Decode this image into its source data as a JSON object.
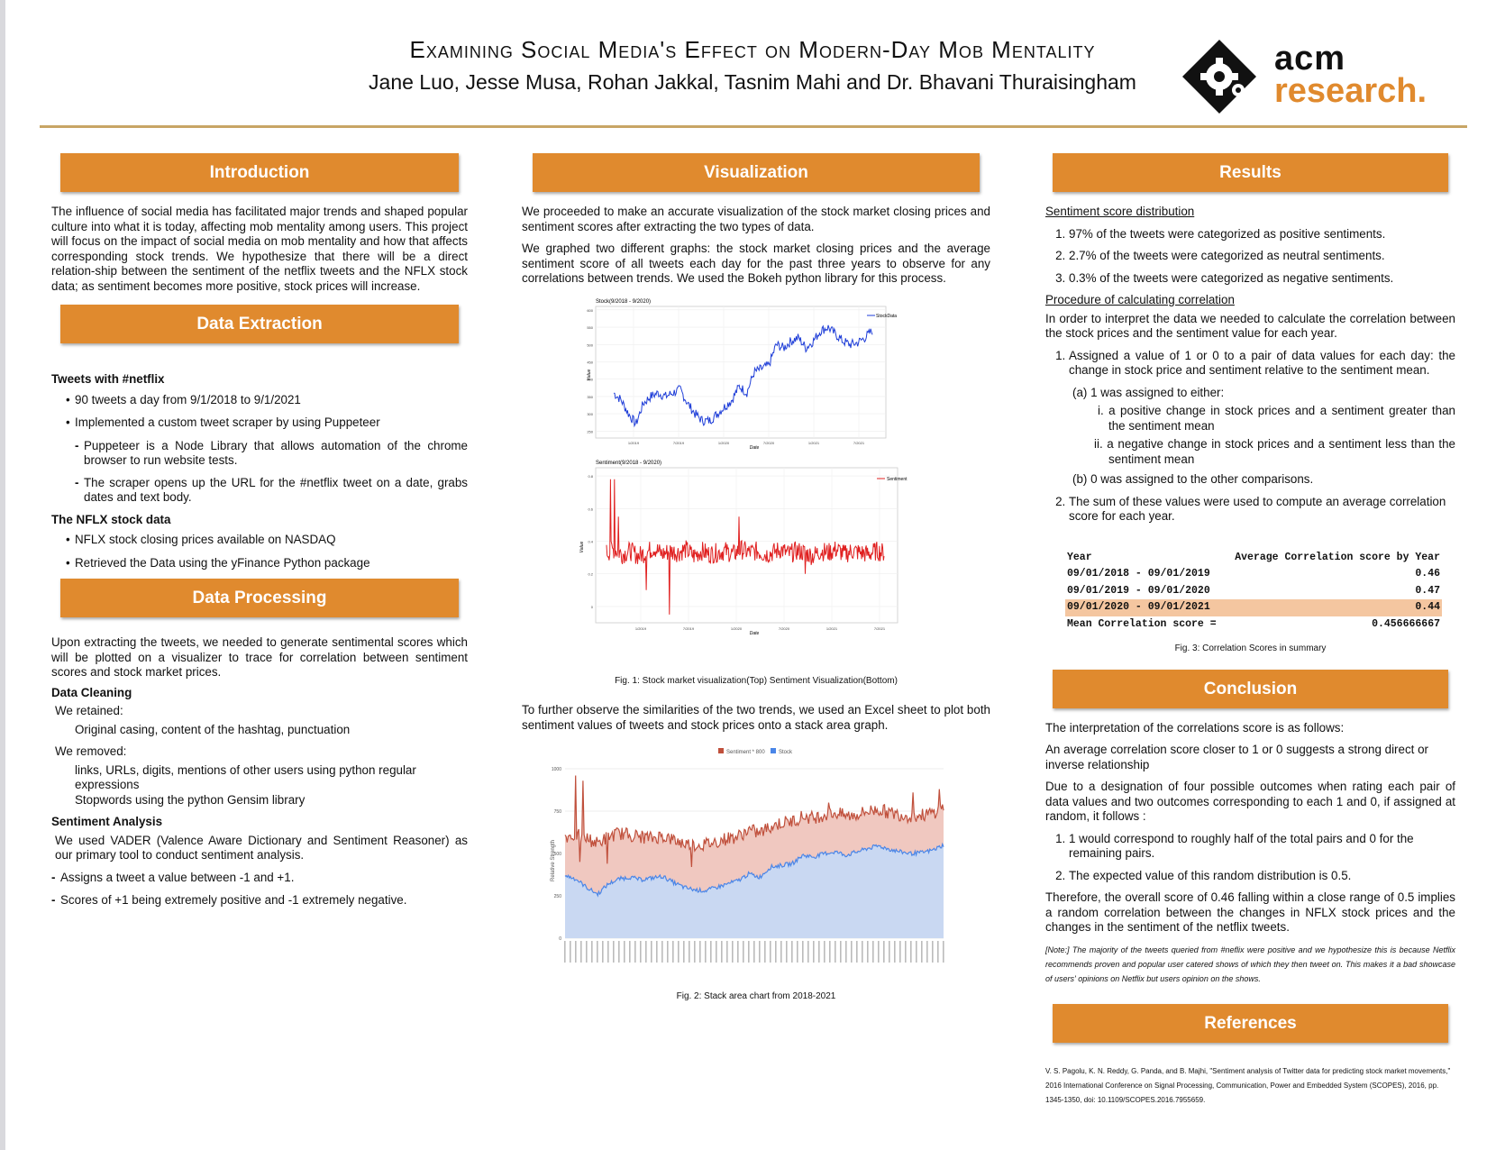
{
  "header": {
    "title": "Examining Social Media's Effect on Modern-Day Mob Mentality",
    "authors": "Jane Luo, Jesse Musa, Rohan Jakkal, Tasnim Mahi and Dr. Bhavani Thuraisingham",
    "logo_line1": "acm",
    "logo_line2": "research."
  },
  "colors": {
    "accent": "#e08a2e",
    "rule": "#c8a565",
    "stock_line": "#1f3ed8",
    "sentiment_line": "#e02020",
    "area_stock": "#c9d8f2",
    "area_sentiment": "#f0c8c0"
  },
  "intro": {
    "heading": "Introduction",
    "text": "The influence of social media has facilitated major trends and shaped popular culture into what it is today, affecting mob mentality among users.  This project will focus on the impact of social media on mob mentality and how that affects corresponding stock trends.  We hypothesize that there will be a direct relation-ship between the sentiment of the netflix tweets and the NFLX stock data; as sentiment becomes more positive, stock prices will increase."
  },
  "extraction": {
    "heading": "Data Extraction",
    "tweets_title": "Tweets with #netflix",
    "tweets_items": [
      "90 tweets a day from 9/1/2018 to 9/1/2021",
      "Implemented a custom tweet scraper by using Puppeteer"
    ],
    "puppeteer_items": [
      "Puppeteer is a Node Library that allows automation of the chrome browser to run website tests.",
      "The scraper opens up the URL for the #netflix tweet on a date, grabs dates and text body."
    ],
    "stock_title": "The NFLX stock data",
    "stock_items": [
      "NFLX stock closing prices available on NASDAQ",
      "Retrieved the Data using the yFinance Python package"
    ]
  },
  "processing": {
    "heading": "Data Processing",
    "text": "Upon extracting the tweets, we needed to generate sentimental scores which will be plotted on a visualizer to trace for correlation between sentiment scores and stock market prices.",
    "cleaning_title": "Data Cleaning",
    "retained_label": "We retained:",
    "retained_text": "Original casing, content of the hashtag, punctuation",
    "removed_label": "We removed:",
    "removed_1": "links, URLs, digits, mentions of other users using python regular expressions",
    "removed_2": "Stopwords using the python Gensim library",
    "sentiment_title": "Sentiment Analysis",
    "sentiment_text": "We used VADER (Valence Aware Dictionary and Sentiment Reasoner) as our primary tool to conduct sentiment analysis.",
    "sentiment_items": [
      "Assigns a tweet a value between -1 and +1.",
      "Scores of +1 being extremely positive and -1 extremely negative."
    ]
  },
  "visualization": {
    "heading": "Visualization",
    "p1": "We proceeded to make an accurate visualization of the stock market closing prices and sentiment scores after extracting the two types of data.",
    "p2": "We graphed two different graphs: the stock market closing prices and the average sentiment score of all tweets each day for the past three years to observe for any correlations between trends. We used the Bokeh python library for this process.",
    "fig1_caption": "Fig. 1: Stock market visualization(Top) Sentiment Visualization(Bottom)",
    "p3": "To further observe the similarities of the two trends, we used an Excel sheet to plot both sentiment values of tweets and stock prices onto a stack area graph.",
    "fig2_caption": "Fig. 2: Stack area chart from 2018-2021"
  },
  "results": {
    "heading": "Results",
    "dist_title": "Sentiment score distribution",
    "dist_items": [
      "97% of the tweets were categorized as positive sentiments.",
      "2.7% of the tweets were categorized as neutral sentiments.",
      "0.3% of the tweets were categorized as negative sentiments."
    ],
    "proc_title": "Procedure of calculating correlation",
    "proc_text": "In order to interpret the data we needed to calculate the correlation between the stock prices and the sentiment value for each year.",
    "step1": "Assigned a value of 1 or 0 to a pair of data values for each day: the change in stock price and sentiment relative to the sentiment mean.",
    "step1a": "(a)  1 was assigned to either:",
    "step1a_i": "i. a positive change in stock prices and a sentiment greater than the sentiment mean",
    "step1a_ii": "ii. a negative change in stock prices and a sentiment less than the sentiment mean",
    "step1b": "(b)  0 was assigned to the other comparisons.",
    "step2": "The sum of these values were used to compute an average correlation score for each year.",
    "table_header_year": "Year",
    "table_header_score": "Average Correlation score by Year",
    "table_rows": [
      {
        "year": "09/01/2018 - 09/01/2019",
        "score": "0.46"
      },
      {
        "year": "09/01/2019 - 09/01/2020",
        "score": "0.47"
      },
      {
        "year": "09/01/2020 - 09/01/2021",
        "score": "0.44"
      }
    ],
    "table_mean_label": "Mean Correlation score =",
    "table_mean_value": "0.456666667",
    "fig3_caption": "Fig. 3: Correlation Scores in summary"
  },
  "conclusion": {
    "heading": "Conclusion",
    "p1": "The interpretation of the correlations score is as follows:",
    "p2": "An average correlation score closer to 1 or 0 suggests a strong direct or inverse relationship",
    "p3": "Due to a designation of four possible outcomes when rating each pair of data values and two outcomes corresponding to each 1 and 0, if assigned at random, it follows :",
    "items": [
      "1 would correspond to roughly half of the total pairs and 0 for the remaining pairs.",
      "The expected value of this random distribution is 0.5."
    ],
    "p4": "Therefore, the overall score of 0.46 falling within a close range of 0.5 implies a random correlation between the changes in NFLX stock prices and the changes in the sentiment of the netflix tweets.",
    "note_label": "[Note:]",
    "note": "The majority of the tweets queried from #neflix were positive and we hypothesize this is because Netflix recommends proven and popular user catered shows of which they then tweet on. This makes it a bad showcase of users' opinions on Netflix but users opinion on the shows."
  },
  "references": {
    "heading": "References",
    "text": "V. S. Pagolu, K. N. Reddy, G. Panda, and B. Majhi, \"Sentiment analysis of Twitter data for predicting stock market movements,\" 2016 International Conference on Signal Processing, Communication, Power and Embedded System (SCOPES), 2016, pp. 1345-1350, doi: 10.1109/SCOPES.2016.7955659."
  },
  "chart_data": [
    {
      "type": "line",
      "title": "Stock(9/2018 - 9/2020)",
      "xlabel": "Date",
      "ylabel": "Value",
      "x_ticks": [
        "1/2019",
        "7/2019",
        "1/2020",
        "7/2020",
        "1/2021",
        "7/2021"
      ],
      "y_ticks": [
        250,
        300,
        350,
        400,
        450,
        500,
        550,
        600
      ],
      "ylim": [
        230,
        610
      ],
      "legend": "top-right",
      "series": [
        {
          "name": "StockData",
          "x": [
            "2018-09",
            "2018-10",
            "2018-11",
            "2018-12",
            "2019-01",
            "2019-02",
            "2019-03",
            "2019-04",
            "2019-05",
            "2019-06",
            "2019-07",
            "2019-08",
            "2019-09",
            "2019-10",
            "2019-11",
            "2019-12",
            "2020-01",
            "2020-02",
            "2020-03",
            "2020-04",
            "2020-05",
            "2020-06",
            "2020-07",
            "2020-08",
            "2020-09",
            "2020-10",
            "2020-11",
            "2020-12",
            "2021-01",
            "2021-02",
            "2021-03",
            "2021-04",
            "2021-05",
            "2021-06",
            "2021-07",
            "2021-08"
          ],
          "values": [
            360,
            340,
            300,
            270,
            330,
            350,
            360,
            350,
            360,
            370,
            330,
            300,
            280,
            280,
            300,
            320,
            340,
            380,
            360,
            420,
            430,
            440,
            500,
            490,
            510,
            520,
            490,
            510,
            540,
            550,
            530,
            510,
            500,
            505,
            520,
            540
          ]
        }
      ]
    },
    {
      "type": "line",
      "title": "Sentiment(9/2018 - 9/2020)",
      "xlabel": "Date",
      "ylabel": "Value",
      "x_ticks": [
        "1/2019",
        "7/2019",
        "1/2020",
        "7/2020",
        "1/2021",
        "7/2021"
      ],
      "y_ticks": [
        0,
        0.2,
        0.4,
        0.6,
        0.8
      ],
      "ylim": [
        -0.1,
        0.85
      ],
      "legend": "top-right",
      "series": [
        {
          "name": "Sentiment",
          "values": [
            0.33,
            0.35,
            0.32,
            0.34,
            0.31,
            0.33,
            0.36,
            0.32,
            0.34,
            0.33,
            0.35,
            0.31,
            0.34,
            0.32,
            0.33,
            0.34,
            0.32,
            0.35,
            0.33,
            0.34,
            0.32,
            0.33,
            0.35,
            0.32,
            0.34,
            0.33,
            0.31,
            0.34,
            0.33,
            0.35,
            0.32,
            0.34,
            0.33,
            0.32,
            0.34,
            0.33
          ]
        }
      ]
    },
    {
      "type": "area",
      "title": "",
      "xlabel": "",
      "ylabel": "Relative Strength",
      "y_ticks": [
        0,
        250,
        500,
        750,
        1000
      ],
      "ylim": [
        0,
        1000
      ],
      "legend": "top-center",
      "series": [
        {
          "name": "Stock",
          "values": [
            370,
            350,
            300,
            260,
            320,
            350,
            360,
            345,
            355,
            365,
            330,
            300,
            285,
            280,
            300,
            320,
            340,
            380,
            360,
            420,
            430,
            440,
            490,
            480,
            500,
            510,
            490,
            510,
            530,
            545,
            525,
            510,
            500,
            505,
            520,
            550
          ]
        },
        {
          "name": "Sentiment * 800",
          "values": [
            600,
            610,
            590,
            560,
            600,
            620,
            610,
            600,
            590,
            605,
            580,
            560,
            550,
            555,
            570,
            590,
            600,
            640,
            620,
            660,
            680,
            690,
            720,
            710,
            730,
            740,
            720,
            730,
            750,
            760,
            740,
            730,
            720,
            725,
            740,
            770
          ]
        }
      ]
    }
  ]
}
